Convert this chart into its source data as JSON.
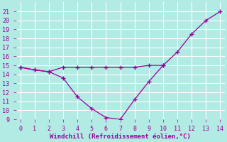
{
  "x_curved": [
    0,
    1,
    2,
    3,
    4,
    5,
    6,
    7,
    8,
    9,
    10,
    11,
    12,
    13,
    14
  ],
  "y_curved": [
    14.8,
    14.5,
    14.3,
    13.6,
    11.5,
    10.2,
    9.2,
    9.0,
    11.2,
    13.2,
    15.0,
    16.5,
    18.5,
    20.0,
    21.0
  ],
  "x_flat": [
    0,
    1,
    2,
    3,
    4,
    5,
    6,
    7,
    8,
    9,
    10
  ],
  "y_flat": [
    14.8,
    14.5,
    14.3,
    14.8,
    14.8,
    14.8,
    14.8,
    14.8,
    14.8,
    15.0,
    15.0
  ],
  "line_color": "#990099",
  "background_color": "#b2eae4",
  "grid_color": "#ffffff",
  "xlabel": "Windchill (Refroidissement éolien,°C)",
  "xlabel_color": "#990099",
  "tick_color": "#990099",
  "ylim": [
    9,
    22
  ],
  "xlim": [
    -0.3,
    14.3
  ],
  "yticks": [
    9,
    10,
    11,
    12,
    13,
    14,
    15,
    16,
    17,
    18,
    19,
    20,
    21
  ],
  "xticks": [
    0,
    1,
    2,
    3,
    4,
    5,
    6,
    7,
    8,
    9,
    10,
    11,
    12,
    13,
    14
  ],
  "marker": "+",
  "markersize": 4,
  "linewidth": 0.9,
  "figwidth": 3.2,
  "figheight": 2.0,
  "dpi": 100
}
